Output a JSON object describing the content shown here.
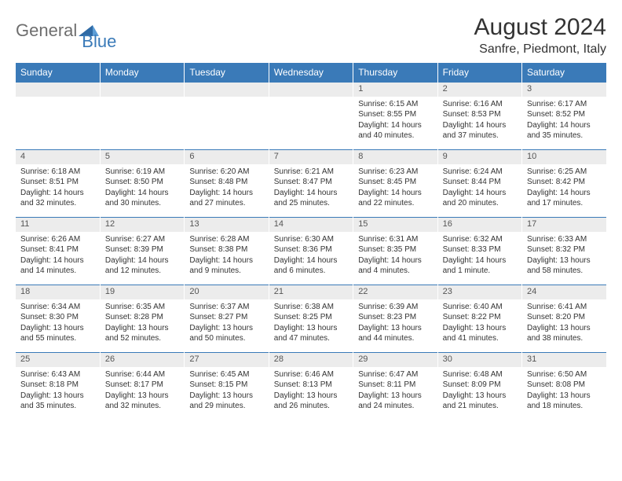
{
  "logo": {
    "part1": "General",
    "part2": "Blue"
  },
  "title": "August 2024",
  "location": "Sanfre, Piedmont, Italy",
  "colors": {
    "header_bg": "#3a7ab8",
    "header_text": "#ffffff",
    "daynum_bg": "#ececec",
    "daynum_text": "#555555",
    "body_text": "#333333",
    "page_bg": "#ffffff",
    "logo_gray": "#6e6e6e",
    "logo_blue": "#3a7ab8"
  },
  "typography": {
    "title_fontsize": 30,
    "location_fontsize": 16,
    "header_fontsize": 12,
    "daynum_fontsize": 11,
    "cell_fontsize": 10
  },
  "weekdays": [
    "Sunday",
    "Monday",
    "Tuesday",
    "Wednesday",
    "Thursday",
    "Friday",
    "Saturday"
  ],
  "weeks": [
    {
      "nums": [
        "",
        "",
        "",
        "",
        "1",
        "2",
        "3"
      ],
      "cells": [
        null,
        null,
        null,
        null,
        {
          "sunrise": "Sunrise: 6:15 AM",
          "sunset": "Sunset: 8:55 PM",
          "day1": "Daylight: 14 hours",
          "day2": "and 40 minutes."
        },
        {
          "sunrise": "Sunrise: 6:16 AM",
          "sunset": "Sunset: 8:53 PM",
          "day1": "Daylight: 14 hours",
          "day2": "and 37 minutes."
        },
        {
          "sunrise": "Sunrise: 6:17 AM",
          "sunset": "Sunset: 8:52 PM",
          "day1": "Daylight: 14 hours",
          "day2": "and 35 minutes."
        }
      ]
    },
    {
      "nums": [
        "4",
        "5",
        "6",
        "7",
        "8",
        "9",
        "10"
      ],
      "cells": [
        {
          "sunrise": "Sunrise: 6:18 AM",
          "sunset": "Sunset: 8:51 PM",
          "day1": "Daylight: 14 hours",
          "day2": "and 32 minutes."
        },
        {
          "sunrise": "Sunrise: 6:19 AM",
          "sunset": "Sunset: 8:50 PM",
          "day1": "Daylight: 14 hours",
          "day2": "and 30 minutes."
        },
        {
          "sunrise": "Sunrise: 6:20 AM",
          "sunset": "Sunset: 8:48 PM",
          "day1": "Daylight: 14 hours",
          "day2": "and 27 minutes."
        },
        {
          "sunrise": "Sunrise: 6:21 AM",
          "sunset": "Sunset: 8:47 PM",
          "day1": "Daylight: 14 hours",
          "day2": "and 25 minutes."
        },
        {
          "sunrise": "Sunrise: 6:23 AM",
          "sunset": "Sunset: 8:45 PM",
          "day1": "Daylight: 14 hours",
          "day2": "and 22 minutes."
        },
        {
          "sunrise": "Sunrise: 6:24 AM",
          "sunset": "Sunset: 8:44 PM",
          "day1": "Daylight: 14 hours",
          "day2": "and 20 minutes."
        },
        {
          "sunrise": "Sunrise: 6:25 AM",
          "sunset": "Sunset: 8:42 PM",
          "day1": "Daylight: 14 hours",
          "day2": "and 17 minutes."
        }
      ]
    },
    {
      "nums": [
        "11",
        "12",
        "13",
        "14",
        "15",
        "16",
        "17"
      ],
      "cells": [
        {
          "sunrise": "Sunrise: 6:26 AM",
          "sunset": "Sunset: 8:41 PM",
          "day1": "Daylight: 14 hours",
          "day2": "and 14 minutes."
        },
        {
          "sunrise": "Sunrise: 6:27 AM",
          "sunset": "Sunset: 8:39 PM",
          "day1": "Daylight: 14 hours",
          "day2": "and 12 minutes."
        },
        {
          "sunrise": "Sunrise: 6:28 AM",
          "sunset": "Sunset: 8:38 PM",
          "day1": "Daylight: 14 hours",
          "day2": "and 9 minutes."
        },
        {
          "sunrise": "Sunrise: 6:30 AM",
          "sunset": "Sunset: 8:36 PM",
          "day1": "Daylight: 14 hours",
          "day2": "and 6 minutes."
        },
        {
          "sunrise": "Sunrise: 6:31 AM",
          "sunset": "Sunset: 8:35 PM",
          "day1": "Daylight: 14 hours",
          "day2": "and 4 minutes."
        },
        {
          "sunrise": "Sunrise: 6:32 AM",
          "sunset": "Sunset: 8:33 PM",
          "day1": "Daylight: 14 hours",
          "day2": "and 1 minute."
        },
        {
          "sunrise": "Sunrise: 6:33 AM",
          "sunset": "Sunset: 8:32 PM",
          "day1": "Daylight: 13 hours",
          "day2": "and 58 minutes."
        }
      ]
    },
    {
      "nums": [
        "18",
        "19",
        "20",
        "21",
        "22",
        "23",
        "24"
      ],
      "cells": [
        {
          "sunrise": "Sunrise: 6:34 AM",
          "sunset": "Sunset: 8:30 PM",
          "day1": "Daylight: 13 hours",
          "day2": "and 55 minutes."
        },
        {
          "sunrise": "Sunrise: 6:35 AM",
          "sunset": "Sunset: 8:28 PM",
          "day1": "Daylight: 13 hours",
          "day2": "and 52 minutes."
        },
        {
          "sunrise": "Sunrise: 6:37 AM",
          "sunset": "Sunset: 8:27 PM",
          "day1": "Daylight: 13 hours",
          "day2": "and 50 minutes."
        },
        {
          "sunrise": "Sunrise: 6:38 AM",
          "sunset": "Sunset: 8:25 PM",
          "day1": "Daylight: 13 hours",
          "day2": "and 47 minutes."
        },
        {
          "sunrise": "Sunrise: 6:39 AM",
          "sunset": "Sunset: 8:23 PM",
          "day1": "Daylight: 13 hours",
          "day2": "and 44 minutes."
        },
        {
          "sunrise": "Sunrise: 6:40 AM",
          "sunset": "Sunset: 8:22 PM",
          "day1": "Daylight: 13 hours",
          "day2": "and 41 minutes."
        },
        {
          "sunrise": "Sunrise: 6:41 AM",
          "sunset": "Sunset: 8:20 PM",
          "day1": "Daylight: 13 hours",
          "day2": "and 38 minutes."
        }
      ]
    },
    {
      "nums": [
        "25",
        "26",
        "27",
        "28",
        "29",
        "30",
        "31"
      ],
      "cells": [
        {
          "sunrise": "Sunrise: 6:43 AM",
          "sunset": "Sunset: 8:18 PM",
          "day1": "Daylight: 13 hours",
          "day2": "and 35 minutes."
        },
        {
          "sunrise": "Sunrise: 6:44 AM",
          "sunset": "Sunset: 8:17 PM",
          "day1": "Daylight: 13 hours",
          "day2": "and 32 minutes."
        },
        {
          "sunrise": "Sunrise: 6:45 AM",
          "sunset": "Sunset: 8:15 PM",
          "day1": "Daylight: 13 hours",
          "day2": "and 29 minutes."
        },
        {
          "sunrise": "Sunrise: 6:46 AM",
          "sunset": "Sunset: 8:13 PM",
          "day1": "Daylight: 13 hours",
          "day2": "and 26 minutes."
        },
        {
          "sunrise": "Sunrise: 6:47 AM",
          "sunset": "Sunset: 8:11 PM",
          "day1": "Daylight: 13 hours",
          "day2": "and 24 minutes."
        },
        {
          "sunrise": "Sunrise: 6:48 AM",
          "sunset": "Sunset: 8:09 PM",
          "day1": "Daylight: 13 hours",
          "day2": "and 21 minutes."
        },
        {
          "sunrise": "Sunrise: 6:50 AM",
          "sunset": "Sunset: 8:08 PM",
          "day1": "Daylight: 13 hours",
          "day2": "and 18 minutes."
        }
      ]
    }
  ]
}
